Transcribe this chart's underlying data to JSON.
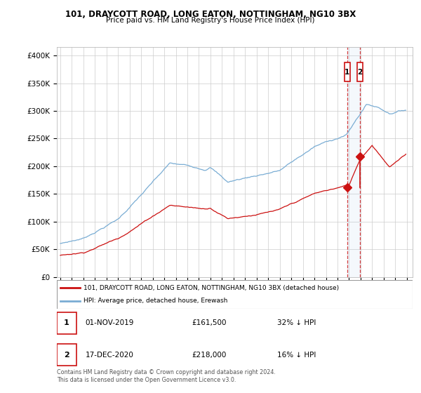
{
  "title": "101, DRAYCOTT ROAD, LONG EATON, NOTTINGHAM, NG10 3BX",
  "subtitle": "Price paid vs. HM Land Registry's House Price Index (HPI)",
  "legend_line1": "101, DRAYCOTT ROAD, LONG EATON, NOTTINGHAM, NG10 3BX (detached house)",
  "legend_line2": "HPI: Average price, detached house, Erewash",
  "footer": "Contains HM Land Registry data © Crown copyright and database right 2024.\nThis data is licensed under the Open Government Licence v3.0.",
  "annotation1_date": "01-NOV-2019",
  "annotation1_price": "£161,500",
  "annotation1_hpi": "32% ↓ HPI",
  "annotation2_date": "17-DEC-2020",
  "annotation2_price": "£218,000",
  "annotation2_hpi": "16% ↓ HPI",
  "hpi_color": "#7aadd4",
  "price_color": "#cc1111",
  "background_color": "#ffffff",
  "grid_color": "#cccccc",
  "ytick_labels": [
    "£0",
    "£50K",
    "£100K",
    "£150K",
    "£200K",
    "£250K",
    "£300K",
    "£350K",
    "£400K"
  ],
  "yticks": [
    0,
    50000,
    100000,
    150000,
    200000,
    250000,
    300000,
    350000,
    400000
  ],
  "ylim": [
    0,
    415000
  ],
  "sale1_year": 2019.833,
  "sale2_year": 2020.958,
  "sale1_price": 161500,
  "sale2_price": 218000
}
